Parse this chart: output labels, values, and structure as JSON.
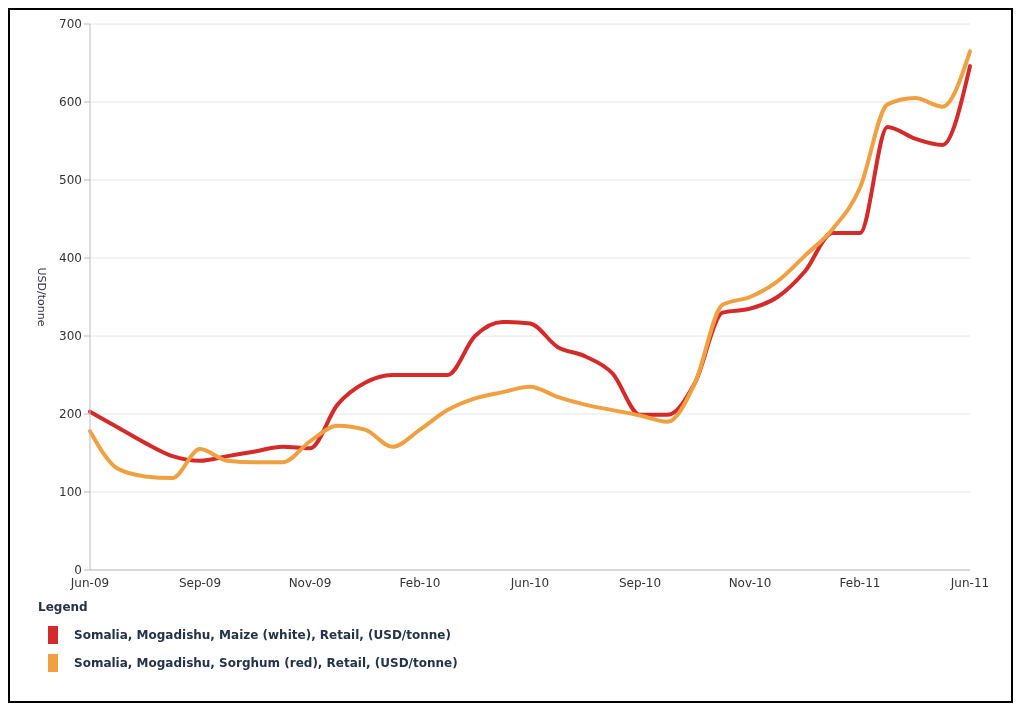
{
  "chart_data": {
    "type": "line",
    "ylabel": "USD/tonne",
    "legend_title": "Legend",
    "categories": [
      "Jun-09",
      null,
      null,
      null,
      "Sep-09",
      null,
      null,
      null,
      "Nov-09",
      null,
      null,
      null,
      "Feb-10",
      null,
      null,
      null,
      "Jun-10",
      null,
      null,
      null,
      "Sep-10",
      null,
      null,
      null,
      "Nov-10",
      null,
      null,
      null,
      "Feb-11",
      null,
      null,
      null,
      "Jun-11"
    ],
    "series": [
      {
        "name": "Somalia, Mogadishu, Maize (white), Retail, (USD/tonne)",
        "color": "#d42a2a",
        "values": [
          203,
          183,
          163,
          146,
          140,
          146,
          152,
          158,
          156,
          212,
          240,
          250,
          250,
          250,
          300,
          318,
          316,
          286,
          274,
          252,
          199,
          199,
          240,
          330,
          335,
          350,
          383,
          432,
          432,
          568,
          553,
          545,
          646
        ]
      },
      {
        "name": "Somalia, Mogadishu, Sorghum (red), Retail, (USD/tonne)",
        "color": "#f0a040",
        "values": [
          178,
          130,
          120,
          118,
          155,
          140,
          138,
          138,
          165,
          185,
          180,
          158,
          180,
          205,
          220,
          228,
          235,
          222,
          212,
          205,
          198,
          190,
          240,
          340,
          350,
          370,
          403,
          437,
          490,
          597,
          605,
          594,
          665
        ]
      }
    ],
    "ylim": [
      0,
      700
    ],
    "yticks": [
      0,
      100,
      200,
      300,
      400,
      500,
      600,
      700
    ],
    "grid": "y",
    "legend": "bottom",
    "marker": "none",
    "line_style": "solid"
  }
}
